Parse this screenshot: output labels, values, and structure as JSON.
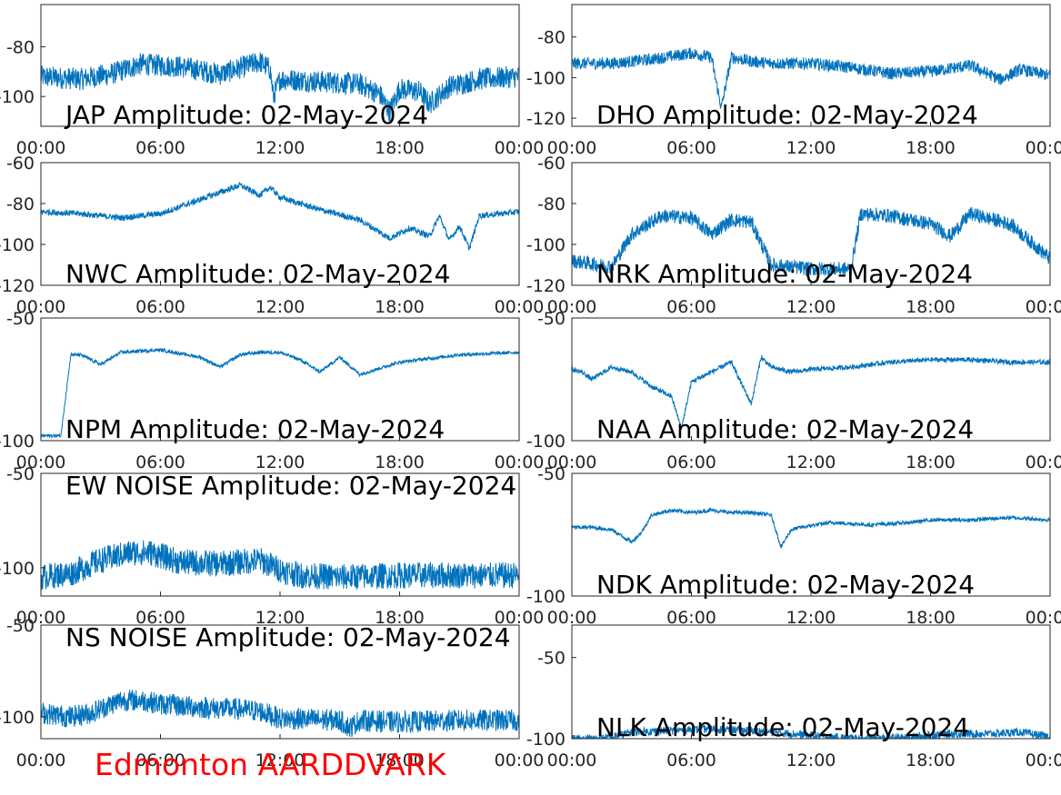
{
  "footer": {
    "label": "Edmonton AARDDVARK",
    "color": "#ff0000"
  },
  "style": {
    "line_color": "#0072bd",
    "axis_color": "#262626",
    "label_color": "#000000"
  },
  "chart_data": [
    {
      "type": "line",
      "title": "JAP Amplitude: 02-May-2024",
      "x_ticks": [
        "00:00",
        "06:00",
        "12:00",
        "18:00",
        "00:00"
      ],
      "y_ticks": [
        -80,
        -100
      ],
      "ylim": [
        -112,
        -63
      ],
      "x": [
        "00:00",
        "02:00",
        "03:30",
        "05:00",
        "07:00",
        "09:00",
        "11:00",
        "11:30",
        "11:40",
        "12:00",
        "14:00",
        "16:00",
        "17:00",
        "17:30",
        "18:00",
        "19:00",
        "19:30",
        "20:30",
        "22:00",
        "24:00"
      ],
      "y": [
        -92,
        -93,
        -91,
        -87,
        -88,
        -91,
        -86,
        -89,
        -100,
        -93,
        -94,
        -95,
        -99,
        -106,
        -97,
        -98,
        -103,
        -96,
        -93,
        -92
      ],
      "noise": 4.5
    },
    {
      "type": "line",
      "title": "DHO Amplitude: 02-May-2024",
      "x_ticks": [
        "00:00",
        "06:00",
        "12:00",
        "18:00",
        "00:00"
      ],
      "y_ticks": [
        -80,
        -100,
        -120
      ],
      "ylim": [
        -124,
        -64
      ],
      "x": [
        "00:00",
        "02:00",
        "04:00",
        "06:00",
        "07:00",
        "07:30",
        "08:00",
        "09:00",
        "10:00",
        "12:00",
        "14:00",
        "16:00",
        "18:00",
        "20:00",
        "21:30",
        "22:30",
        "24:00"
      ],
      "y": [
        -93,
        -93,
        -91,
        -88,
        -90,
        -115,
        -90,
        -92,
        -93,
        -93,
        -95,
        -98,
        -97,
        -94,
        -101,
        -96,
        -99
      ],
      "noise": 3
    },
    {
      "type": "line",
      "title": "NWC Amplitude: 02-May-2024",
      "x_ticks": [
        "00:00",
        "06:00",
        "12:00",
        "18:00",
        "00:00"
      ],
      "y_ticks": [
        -60,
        -80,
        -100,
        -120
      ],
      "ylim": [
        -120,
        -60
      ],
      "x": [
        "00:00",
        "02:00",
        "04:00",
        "06:00",
        "08:00",
        "10:00",
        "11:00",
        "11:30",
        "12:00",
        "14:00",
        "16:00",
        "17:30",
        "18:30",
        "19:30",
        "20:00",
        "20:30",
        "21:00",
        "21:30",
        "22:00",
        "23:00",
        "24:00"
      ],
      "y": [
        -84,
        -85,
        -87,
        -85,
        -78,
        -71,
        -76,
        -72,
        -77,
        -83,
        -88,
        -97,
        -92,
        -96,
        -86,
        -98,
        -91,
        -102,
        -86,
        -85,
        -84
      ],
      "noise": 1.5
    },
    {
      "type": "line",
      "title": "NRK Amplitude: 02-May-2024",
      "x_ticks": [
        "00:00",
        "06:00",
        "12:00",
        "18:00",
        "00:00"
      ],
      "y_ticks": [
        -60,
        -80,
        -100,
        -120
      ],
      "ylim": [
        -120,
        -60
      ],
      "x": [
        "00:00",
        "02:00",
        "03:00",
        "04:30",
        "06:00",
        "07:00",
        "08:00",
        "09:00",
        "10:00",
        "12:00",
        "14:00",
        "14:30",
        "16:00",
        "18:00",
        "19:00",
        "20:00",
        "22:00",
        "24:00"
      ],
      "y": [
        -108,
        -111,
        -95,
        -86,
        -87,
        -95,
        -88,
        -89,
        -110,
        -112,
        -112,
        -85,
        -86,
        -90,
        -96,
        -85,
        -90,
        -107
      ],
      "noise": 3.5
    },
    {
      "type": "line",
      "title": "NPM Amplitude: 02-May-2024",
      "x_ticks": [
        "00:00",
        "06:00",
        "12:00",
        "18:00",
        "00:00"
      ],
      "y_ticks": [
        -50,
        -100
      ],
      "ylim": [
        -100,
        -50
      ],
      "x": [
        "00:00",
        "01:00",
        "01:30",
        "02:00",
        "03:00",
        "04:00",
        "06:00",
        "08:00",
        "09:00",
        "10:00",
        "11:00",
        "12:00",
        "13:00",
        "14:00",
        "15:00",
        "16:00",
        "18:00",
        "21:00",
        "24:00"
      ],
      "y": [
        -98,
        -98,
        -65,
        -65,
        -69,
        -64,
        -63,
        -66,
        -70,
        -65,
        -64,
        -64,
        -67,
        -72,
        -66,
        -73,
        -68,
        -65,
        -64
      ],
      "noise": 0.7
    },
    {
      "type": "line",
      "title": "NAA Amplitude: 02-May-2024",
      "x_ticks": [
        "00:00",
        "06:00",
        "12:00",
        "18:00",
        "00:00"
      ],
      "y_ticks": [
        -50,
        -100
      ],
      "ylim": [
        -100,
        -50
      ],
      "x": [
        "00:00",
        "00:30",
        "01:00",
        "02:00",
        "03:00",
        "04:00",
        "05:00",
        "05:30",
        "06:00",
        "07:00",
        "08:00",
        "09:00",
        "09:30",
        "10:00",
        "11:00",
        "12:00",
        "14:00",
        "16:00",
        "18:00",
        "20:00",
        "22:00",
        "24:00"
      ],
      "y": [
        -71,
        -72,
        -75,
        -70,
        -72,
        -78,
        -82,
        -95,
        -76,
        -72,
        -68,
        -85,
        -66,
        -70,
        -72,
        -71,
        -70,
        -68,
        -67,
        -67,
        -68,
        -68
      ],
      "noise": 1
    },
    {
      "type": "line",
      "title": "EW NOISE Amplitude: 02-May-2024",
      "x_ticks": [
        "00:00",
        "06:00",
        "12:00",
        "18:00",
        "00:00"
      ],
      "y_ticks": [
        -50,
        -100
      ],
      "ylim": [
        -115,
        -50
      ],
      "x": [
        "00:00",
        "01:30",
        "03:00",
        "04:30",
        "05:30",
        "07:00",
        "09:00",
        "11:00",
        "12:00",
        "13:00",
        "15:00",
        "18:00",
        "21:00",
        "24:00"
      ],
      "y": [
        -105,
        -103,
        -96,
        -92,
        -92,
        -97,
        -98,
        -96,
        -101,
        -104,
        -105,
        -104,
        -104,
        -104
      ],
      "noise": 7
    },
    {
      "type": "line",
      "title": "NDK Amplitude: 02-May-2024",
      "x_ticks": [
        "00:00",
        "06:00",
        "12:00",
        "18:00",
        "00:00"
      ],
      "y_ticks": [
        -50,
        -100
      ],
      "ylim": [
        -100,
        -50
      ],
      "x": [
        "00:00",
        "01:00",
        "02:00",
        "03:00",
        "03:30",
        "04:00",
        "05:00",
        "06:00",
        "07:00",
        "08:00",
        "09:00",
        "10:00",
        "10:30",
        "11:00",
        "11:30",
        "13:00",
        "15:00",
        "17:00",
        "18:00",
        "20:00",
        "22:00",
        "24:00"
      ],
      "y": [
        -72,
        -72,
        -73,
        -78,
        -74,
        -67,
        -65,
        -66,
        -65,
        -66,
        -66,
        -67,
        -80,
        -73,
        -72,
        -70,
        -71,
        -70,
        -69,
        -69,
        -68,
        -69
      ],
      "noise": 0.8
    },
    {
      "type": "line",
      "title": "NS NOISE Amplitude: 02-May-2024",
      "x_ticks": [
        "00:00",
        "06:00",
        "12:00",
        "18:00",
        "00:00"
      ],
      "y_ticks": [
        -50,
        -100
      ],
      "ylim": [
        -112,
        -50
      ],
      "x": [
        "00:00",
        "01:30",
        "02:30",
        "04:00",
        "05:00",
        "06:00",
        "08:00",
        "10:00",
        "11:00",
        "12:00",
        "15:00",
        "15:30",
        "16:00",
        "18:00",
        "21:00",
        "24:00"
      ],
      "y": [
        -98,
        -100,
        -98,
        -91,
        -91,
        -93,
        -95,
        -96,
        -97,
        -101,
        -102,
        -106,
        -102,
        -103,
        -102,
        -102
      ],
      "noise": 6
    },
    {
      "type": "line",
      "title": "NLK Amplitude: 02-May-2024",
      "x_ticks": [
        "00:00",
        "06:00",
        "12:00",
        "18:00",
        "00:00"
      ],
      "y_ticks": [
        -50,
        -100
      ],
      "ylim": [
        -100,
        -30
      ],
      "x": [
        "00:00",
        "01:00",
        "02:00",
        "03:00",
        "05:00",
        "07:00",
        "09:00",
        "11:00",
        "13:00",
        "15:00",
        "17:00",
        "19:00",
        "21:00",
        "22:30",
        "24:00"
      ],
      "y": [
        -100,
        -100,
        -99,
        -96,
        -95,
        -94,
        -95,
        -97,
        -99,
        -100,
        -99,
        -97,
        -97,
        -96,
        -99
      ],
      "noise": 2.5
    }
  ]
}
